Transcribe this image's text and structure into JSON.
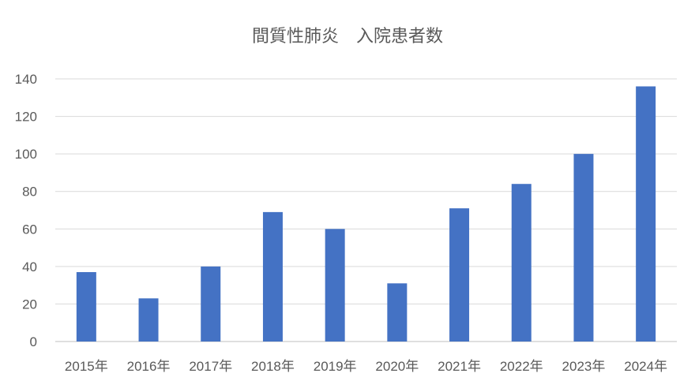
{
  "chart_data": {
    "type": "bar",
    "title": "間質性肺炎　入院患者数",
    "categories": [
      "2015年",
      "2016年",
      "2017年",
      "2018年",
      "2019年",
      "2020年",
      "2021年",
      "2022年",
      "2023年",
      "2024年"
    ],
    "values": [
      37,
      23,
      40,
      69,
      60,
      31,
      71,
      84,
      100,
      136
    ],
    "ylim": [
      0,
      140
    ],
    "yticks": [
      0,
      20,
      40,
      60,
      80,
      100,
      120,
      140
    ],
    "grid": true,
    "legend": "none",
    "bar_color": "#4472c4"
  }
}
